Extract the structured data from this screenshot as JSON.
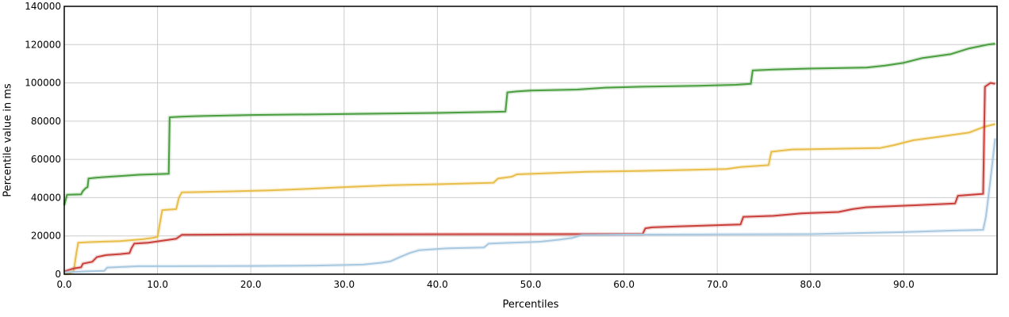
{
  "chart_data": {
    "type": "line",
    "xlabel": "Percentiles",
    "ylabel": "Percentile value in ms",
    "xlim": [
      0,
      100
    ],
    "ylim": [
      0,
      140000
    ],
    "x_ticks": [
      0,
      10,
      20,
      30,
      40,
      50,
      60,
      70,
      80,
      90
    ],
    "x_tick_labels": [
      "0.0",
      "10.0",
      "20.0",
      "30.0",
      "40.0",
      "50.0",
      "60.0",
      "70.0",
      "80.0",
      "90.0"
    ],
    "y_ticks": [
      0,
      20000,
      40000,
      60000,
      80000,
      100000,
      120000,
      140000
    ],
    "y_tick_labels": [
      "0",
      "20000",
      "40000",
      "60000",
      "80000",
      "100000",
      "120000",
      "140000"
    ],
    "grid": true,
    "legend": "none",
    "series": [
      {
        "color": "#4a9e3f",
        "points": [
          [
            0,
            36000
          ],
          [
            0.3,
            41500
          ],
          [
            1.8,
            41700
          ],
          [
            2.0,
            43500
          ],
          [
            2.3,
            45000
          ],
          [
            2.5,
            45500
          ],
          [
            2.6,
            50000
          ],
          [
            3.5,
            50500
          ],
          [
            5.0,
            51000
          ],
          [
            6.5,
            51500
          ],
          [
            8.0,
            52000
          ],
          [
            11.2,
            52500
          ],
          [
            11.3,
            82000
          ],
          [
            12.5,
            82300
          ],
          [
            14.0,
            82600
          ],
          [
            17.0,
            82900
          ],
          [
            20.0,
            83200
          ],
          [
            30.0,
            83700
          ],
          [
            40.0,
            84300
          ],
          [
            47.3,
            85000
          ],
          [
            47.5,
            95000
          ],
          [
            48.5,
            95500
          ],
          [
            50.0,
            96000
          ],
          [
            55.0,
            96500
          ],
          [
            58.0,
            97500
          ],
          [
            62.0,
            98000
          ],
          [
            68.0,
            98500
          ],
          [
            72.0,
            99000
          ],
          [
            73.6,
            99500
          ],
          [
            73.8,
            106500
          ],
          [
            76.0,
            107000
          ],
          [
            80.0,
            107500
          ],
          [
            86.0,
            108000
          ],
          [
            88.0,
            109000
          ],
          [
            90.0,
            110500
          ],
          [
            92.0,
            113000
          ],
          [
            95.0,
            115000
          ],
          [
            97.0,
            118000
          ],
          [
            99.0,
            120000
          ],
          [
            99.8,
            120500
          ]
        ]
      },
      {
        "color": "#e8bd4a",
        "points": [
          [
            0,
            0
          ],
          [
            0.5,
            300
          ],
          [
            1.0,
            1500
          ],
          [
            1.3,
            11000
          ],
          [
            1.5,
            16500
          ],
          [
            3.0,
            16800
          ],
          [
            6.0,
            17300
          ],
          [
            8.5,
            18300
          ],
          [
            9.5,
            19000
          ],
          [
            10.0,
            19500
          ],
          [
            10.5,
            33500
          ],
          [
            12.0,
            34000
          ],
          [
            12.3,
            40000
          ],
          [
            12.6,
            42800
          ],
          [
            17.0,
            43200
          ],
          [
            22.0,
            43800
          ],
          [
            25.5,
            44500
          ],
          [
            30.0,
            45500
          ],
          [
            35.0,
            46500
          ],
          [
            40.0,
            47000
          ],
          [
            46.0,
            47800
          ],
          [
            46.5,
            50000
          ],
          [
            48.0,
            51000
          ],
          [
            48.5,
            52200
          ],
          [
            52.0,
            52800
          ],
          [
            56.0,
            53500
          ],
          [
            62.0,
            54000
          ],
          [
            67.0,
            54500
          ],
          [
            71.0,
            55000
          ],
          [
            72.5,
            56000
          ],
          [
            75.5,
            57000
          ],
          [
            75.8,
            64000
          ],
          [
            78.0,
            65200
          ],
          [
            82.0,
            65500
          ],
          [
            87.5,
            66000
          ],
          [
            89.0,
            67500
          ],
          [
            91.0,
            70000
          ],
          [
            94.0,
            72000
          ],
          [
            97.0,
            74000
          ],
          [
            98.6,
            77000
          ],
          [
            99.8,
            78500
          ]
        ]
      },
      {
        "color": "#c9403b",
        "points": [
          [
            0,
            1500
          ],
          [
            1.0,
            3000
          ],
          [
            1.8,
            3600
          ],
          [
            2.0,
            5500
          ],
          [
            3.0,
            6500
          ],
          [
            3.5,
            9000
          ],
          [
            4.5,
            10000
          ],
          [
            6.0,
            10500
          ],
          [
            7.0,
            11000
          ],
          [
            7.2,
            13500
          ],
          [
            7.5,
            16000
          ],
          [
            9.0,
            16500
          ],
          [
            10.5,
            17500
          ],
          [
            12.0,
            18500
          ],
          [
            12.6,
            20600
          ],
          [
            20.0,
            20800
          ],
          [
            30.0,
            20800
          ],
          [
            45.0,
            20900
          ],
          [
            62.0,
            21000
          ],
          [
            62.3,
            24000
          ],
          [
            63.0,
            24500
          ],
          [
            66.0,
            25000
          ],
          [
            72.5,
            26000
          ],
          [
            72.8,
            30000
          ],
          [
            76.0,
            30500
          ],
          [
            79.0,
            31800
          ],
          [
            83.0,
            32500
          ],
          [
            84.5,
            34000
          ],
          [
            86.0,
            35000
          ],
          [
            91.0,
            36000
          ],
          [
            95.5,
            37000
          ],
          [
            95.8,
            41000
          ],
          [
            98.5,
            42000
          ],
          [
            98.7,
            98000
          ],
          [
            99.3,
            100000
          ],
          [
            99.8,
            99500
          ]
        ]
      },
      {
        "color": "#a8c8e0",
        "points": [
          [
            0,
            1000
          ],
          [
            2.5,
            1500
          ],
          [
            4.3,
            1800
          ],
          [
            4.6,
            3500
          ],
          [
            8.0,
            4200
          ],
          [
            12.0,
            4200
          ],
          [
            20.0,
            4300
          ],
          [
            27.0,
            4500
          ],
          [
            32.0,
            5000
          ],
          [
            34.0,
            6000
          ],
          [
            35.0,
            6800
          ],
          [
            36.0,
            9000
          ],
          [
            37.0,
            11000
          ],
          [
            38.0,
            12500
          ],
          [
            41.0,
            13500
          ],
          [
            45.0,
            14000
          ],
          [
            45.5,
            16000
          ],
          [
            48.0,
            16500
          ],
          [
            51.0,
            17000
          ],
          [
            53.0,
            18000
          ],
          [
            54.5,
            19000
          ],
          [
            55.5,
            20500
          ],
          [
            60.0,
            20700
          ],
          [
            70.0,
            20800
          ],
          [
            80.0,
            20900
          ],
          [
            85.0,
            21500
          ],
          [
            90.0,
            22000
          ],
          [
            95.0,
            22800
          ],
          [
            98.5,
            23200
          ],
          [
            98.8,
            30000
          ],
          [
            99.3,
            50000
          ],
          [
            99.8,
            71000
          ]
        ]
      }
    ]
  }
}
